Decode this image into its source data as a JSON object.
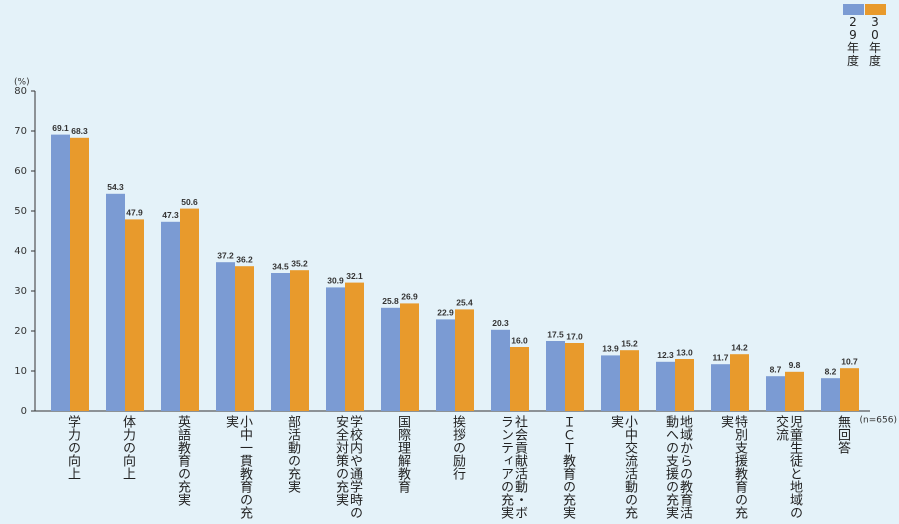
{
  "chart_data": {
    "type": "bar",
    "y_unit": "(%)",
    "annotation": "(n=656)",
    "categories": [
      "学力の向上",
      "体力の向上",
      "英語教育の充実",
      "小中一貫教育の充実",
      "部活動の充実",
      "学校内や通学時の安全対策の充実",
      "国際理解教育",
      "挨拶の励行",
      "社会貢献活動・ボランティアの充実",
      "ＩＣＴ教育の充実",
      "小中交流活動の充実",
      "地域からの教育活動への支援の充実",
      "特別支援教育の充実",
      "児童生徒と地域の交流",
      "無回答"
    ],
    "series": [
      {
        "name": "29年度",
        "color": "#7b9bd3",
        "values": [
          69.1,
          54.3,
          47.3,
          37.2,
          34.5,
          30.9,
          25.8,
          22.9,
          20.3,
          17.5,
          13.9,
          12.3,
          11.7,
          8.7,
          8.2
        ],
        "value_labels": [
          "69.1",
          "54.3",
          "47.3",
          "37.2",
          "34.5",
          "30.9",
          "25.8",
          "22.9",
          "20.3",
          "17.5",
          "13.9",
          "12.3",
          "11.7",
          "8.7",
          "8.2"
        ]
      },
      {
        "name": "30年度",
        "color": "#e89a2c",
        "values": [
          68.3,
          47.9,
          50.6,
          36.2,
          35.2,
          32.1,
          26.9,
          25.4,
          16.0,
          17.0,
          15.2,
          13.0,
          14.2,
          9.8,
          10.7
        ],
        "value_labels": [
          "68.3",
          "47.9",
          "50.6",
          "36.2",
          "35.2",
          "32.1",
          "26.9",
          "25.4",
          "16.0",
          "17.0",
          "15.2",
          "13.0",
          "14.2",
          "9.8",
          "10.7"
        ]
      }
    ],
    "ylim": [
      0,
      80
    ],
    "yticks": [
      0,
      10,
      20,
      30,
      40,
      50,
      60,
      70,
      80
    ],
    "grid": false,
    "legend": "top-right"
  }
}
